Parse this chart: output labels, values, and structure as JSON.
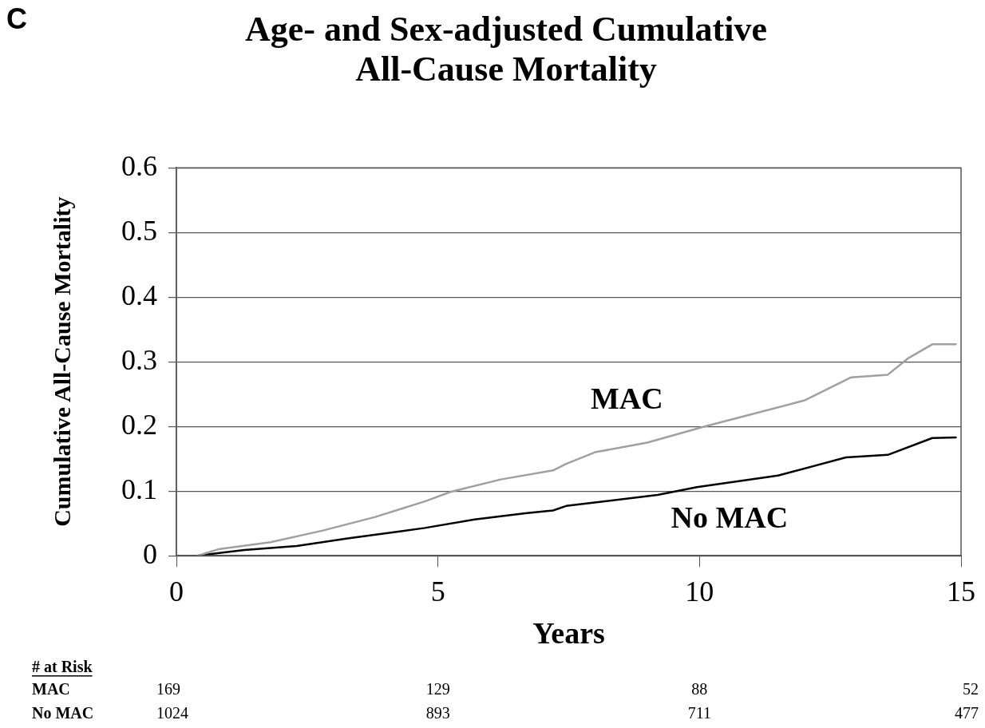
{
  "chart_data": {
    "type": "line",
    "title": [
      "Age- and Sex-adjusted Cumulative",
      "All-Cause Mortality"
    ],
    "xlabel": "Years",
    "ylabel": "Cumulative All-Cause Mortality",
    "xlim": [
      0,
      15
    ],
    "xticks": [
      0,
      5,
      10,
      15
    ],
    "ylim": [
      0,
      0.6
    ],
    "yticks": [
      0,
      0.1,
      0.2,
      0.3,
      0.4,
      0.5,
      0.6
    ],
    "grid": "y",
    "legend": false,
    "marker": "none",
    "line_style": "solid",
    "series": [
      {
        "name": "MAC",
        "color": "#a0a0a0",
        "x": [
          0.4,
          0.8,
          1.8,
          2.8,
          3.8,
          4.75,
          5.25,
          6.2,
          7.2,
          7.45,
          8,
          9,
          10.1,
          12,
          12.9,
          13.6,
          14,
          14.45,
          14.9
        ],
        "values": [
          0,
          0.01,
          0.021,
          0.039,
          0.06,
          0.084,
          0.099,
          0.118,
          0.132,
          0.142,
          0.16,
          0.175,
          0.2,
          0.24,
          0.276,
          0.28,
          0.306,
          0.327,
          0.327
        ]
      },
      {
        "name": "No MAC",
        "color": "#000000",
        "x": [
          0.4,
          1.3,
          2.3,
          3.3,
          4.75,
          5.7,
          6.7,
          7.2,
          7.45,
          9.2,
          9.95,
          11.5,
          12.8,
          13.6,
          14.45,
          14.9
        ],
        "values": [
          0,
          0.009,
          0.015,
          0.027,
          0.043,
          0.056,
          0.066,
          0.07,
          0.077,
          0.094,
          0.106,
          0.124,
          0.152,
          0.156,
          0.182,
          0.183
        ]
      }
    ],
    "annotations": [
      "C",
      "# at Risk",
      "MAC",
      "169",
      "129",
      "88",
      "52",
      "No MAC",
      "1024",
      "893",
      "711",
      "477"
    ]
  }
}
